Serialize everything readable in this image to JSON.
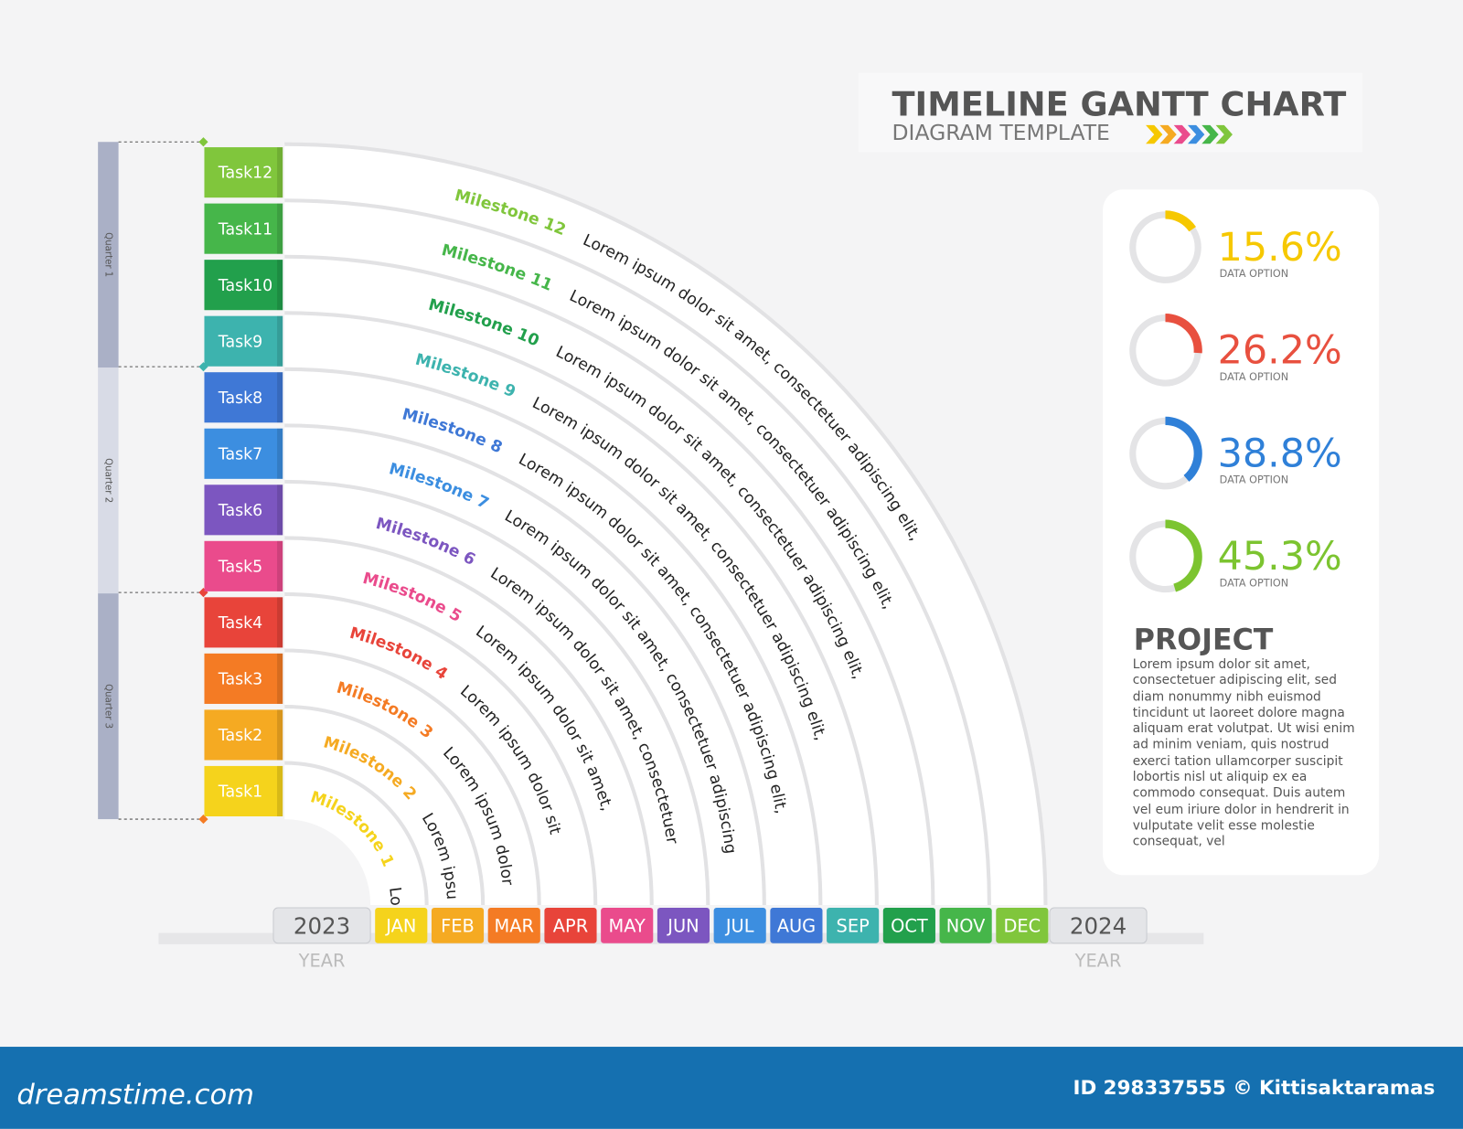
{
  "header": {
    "title": "TIMELINE GANTT CHART",
    "subtitle": "DIAGRAM TEMPLATE"
  },
  "quarters": [
    "Quarter 1",
    "Quarter 2",
    "Quarter 3"
  ],
  "tasks": [
    {
      "label": "Task1",
      "color": "#f5d31c"
    },
    {
      "label": "Task2",
      "color": "#f5aa22"
    },
    {
      "label": "Task3",
      "color": "#f47b24"
    },
    {
      "label": "Task4",
      "color": "#e8443a"
    },
    {
      "label": "Task5",
      "color": "#ea4b8c"
    },
    {
      "label": "Task6",
      "color": "#7c56c0"
    },
    {
      "label": "Task7",
      "color": "#3c8ee0"
    },
    {
      "label": "Task8",
      "color": "#3f78d6"
    },
    {
      "label": "Task9",
      "color": "#3db3ae"
    },
    {
      "label": "Task10",
      "color": "#22a04c"
    },
    {
      "label": "Task11",
      "color": "#46b64a"
    },
    {
      "label": "Task12",
      "color": "#80c63c"
    }
  ],
  "milestones": [
    {
      "label": "Milestone 1",
      "text": "Lorem"
    },
    {
      "label": "Milestone 2",
      "text": "Lorem ipsum"
    },
    {
      "label": "Milestone 3",
      "text": "Lorem ipsum dolor"
    },
    {
      "label": "Milestone 4",
      "text": "Lorem ipsum dolor sit"
    },
    {
      "label": "Milestone 5",
      "text": "Lorem ipsum dolor sit amet,"
    },
    {
      "label": "Milestone 6",
      "text": "Lorem ipsum dolor sit amet, consectetuer"
    },
    {
      "label": "Milestone 7",
      "text": "Lorem ipsum dolor sit amet, consectetuer adipiscing"
    },
    {
      "label": "Milestone 8",
      "text": "Lorem ipsum dolor sit amet, consectetuer adipiscing elit,"
    },
    {
      "label": "Milestone 9",
      "text": "Lorem ipsum dolor sit amet, consectetuer adipiscing elit,"
    },
    {
      "label": "Milestone 10",
      "text": "Lorem ipsum dolor sit amet, consectetuer adipiscing elit,"
    },
    {
      "label": "Milestone 11",
      "text": "Lorem ipsum dolor sit amet, consectetuer adipiscing elit,"
    },
    {
      "label": "Milestone 12",
      "text": "Lorem ipsum dolor sit amet, consectetuer adipiscing elit,"
    }
  ],
  "years": [
    {
      "year": "2023",
      "caption": "YEAR"
    },
    {
      "year": "2024",
      "caption": "YEAR"
    }
  ],
  "months": [
    {
      "label": "JAN",
      "color": "#f5d31c"
    },
    {
      "label": "FEB",
      "color": "#f5aa22"
    },
    {
      "label": "MAR",
      "color": "#f47b24"
    },
    {
      "label": "APR",
      "color": "#e8443a"
    },
    {
      "label": "MAY",
      "color": "#ea4b8c"
    },
    {
      "label": "JUN",
      "color": "#7c56c0"
    },
    {
      "label": "JUL",
      "color": "#3c8ee0"
    },
    {
      "label": "AUG",
      "color": "#3f78d6"
    },
    {
      "label": "SEP",
      "color": "#3db3ae"
    },
    {
      "label": "OCT",
      "color": "#22a04c"
    },
    {
      "label": "NOV",
      "color": "#46b64a"
    },
    {
      "label": "DEC",
      "color": "#80c63c"
    }
  ],
  "donuts": [
    {
      "value": 15.6,
      "value_label": "15.6%",
      "caption": "DATA OPTION",
      "color": "#f6c800"
    },
    {
      "value": 26.2,
      "value_label": "26.2%",
      "caption": "DATA OPTION",
      "color": "#e8503f"
    },
    {
      "value": 38.8,
      "value_label": "38.8%",
      "caption": "DATA OPTION",
      "color": "#2f80d8"
    },
    {
      "value": 45.3,
      "value_label": "45.3%",
      "caption": "DATA OPTION",
      "color": "#7cc430"
    }
  ],
  "project": {
    "title": "PROJECT",
    "text": "Lorem ipsum dolor sit amet, consectetuer adipiscing elit, sed diam nonummy nibh euismod tincidunt ut laoreet dolore magna aliquam erat volutpat. Ut wisi enim ad minim veniam, quis nostrud exerci tation ullamcorper suscipit lobortis nisl ut aliquip ex ea commodo consequat. Duis autem vel eum iriure dolor in hendrerit in vulputate velit esse molestie consequat, vel"
  },
  "footer": {
    "brand": "dreamstime.com",
    "credit": "ID 298337555 © Kittisaktaramas"
  }
}
